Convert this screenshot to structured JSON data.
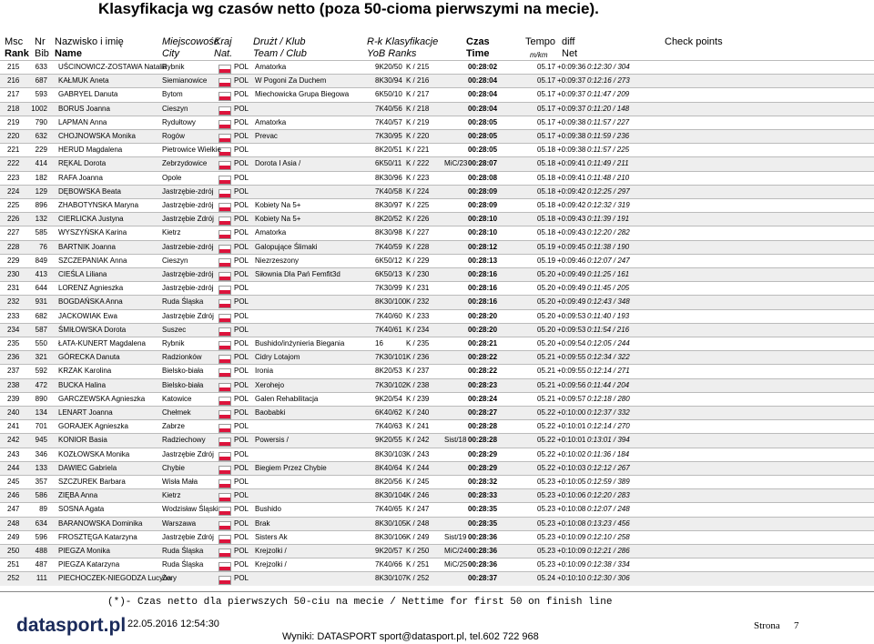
{
  "header": {
    "title": "Klasyfikacja wg czasów netto (poza 50-cioma pierwszymi na mecie).",
    "columns1": [
      "Msc",
      "Nr",
      "Nazwisko i imię",
      "Miejscowość",
      "Kraj",
      "Drużt / Klub",
      "R-k Klasyfikacje",
      "Czas",
      "Tempo",
      "diff",
      "Check points"
    ],
    "columns2": [
      "Rank",
      "Bib",
      "Name",
      "City",
      "Nat.",
      "Team / Club",
      "YoB Ranks",
      "Time",
      "m/km",
      "Net"
    ]
  },
  "table": {
    "rows": [
      [
        "215",
        "633",
        "UŚCINOWICZ-ZOSTAWA Natalia",
        "Rybnik",
        "POL",
        "Amatorka",
        "9K20/50",
        "K / 215",
        "",
        "00:28:02",
        "05.17",
        "+0:09:36",
        "0:12:30 / 304"
      ],
      [
        "216",
        "687",
        "KAŁMUK Aneta",
        "Siemianowice",
        "POL",
        "W Pogoni Za Duchem",
        "8K30/94",
        "K / 216",
        "",
        "00:28:04",
        "05.17",
        "+0:09:37",
        "0:12:16 / 273"
      ],
      [
        "217",
        "593",
        "GABRYEL Danuta",
        "Bytom",
        "POL",
        "Miechowicka Grupa Biegowa",
        "6K50/10",
        "K / 217",
        "",
        "00:28:04",
        "05.17",
        "+0:09:37",
        "0:11:47 / 209"
      ],
      [
        "218",
        "1002",
        "BORUS Joanna",
        "Cieszyn",
        "POL",
        "",
        "7K40/56",
        "K / 218",
        "",
        "00:28:04",
        "05.17",
        "+0:09:37",
        "0:11:20 / 148"
      ],
      [
        "219",
        "790",
        "LAPMAN Anna",
        "Rydułtowy",
        "POL",
        "Amatorka",
        "7K40/57",
        "K / 219",
        "",
        "00:28:05",
        "05.17",
        "+0:09:38",
        "0:11:57 / 227"
      ],
      [
        "220",
        "632",
        "CHOJNOWSKA Monika",
        "Rogów",
        "POL",
        "Prevac",
        "7K30/95",
        "K / 220",
        "",
        "00:28:05",
        "05.17",
        "+0:09:38",
        "0:11:59 / 236"
      ],
      [
        "221",
        "229",
        "HERUD Magdalena",
        "Pietrowice Wielkie",
        "POL",
        "",
        "8K20/51",
        "K / 221",
        "",
        "00:28:05",
        "05.18",
        "+0:09:38",
        "0:11:57 / 225"
      ],
      [
        "222",
        "414",
        "RĘKAL Dorota",
        "Zebrzydowice",
        "POL",
        "Dorota I Asia /",
        "6K50/11",
        "K / 222",
        "MiC/23",
        "00:28:07",
        "05.18",
        "+0:09:41",
        "0:11:49 / 211"
      ],
      [
        "223",
        "182",
        "RAFA Joanna",
        "Opole",
        "POL",
        "",
        "8K30/96",
        "K / 223",
        "",
        "00:28:08",
        "05.18",
        "+0:09:41",
        "0:11:48 / 210"
      ],
      [
        "224",
        "129",
        "DĘBOWSKA Beata",
        "Jastrzębie-zdrój",
        "POL",
        "",
        "7K40/58",
        "K / 224",
        "",
        "00:28:09",
        "05.18",
        "+0:09:42",
        "0:12:25 / 297"
      ],
      [
        "225",
        "896",
        "ZHABOTYNSKA Maryna",
        "Jastrzębie-zdrój",
        "POL",
        "Kobiety Na 5+",
        "8K30/97",
        "K / 225",
        "",
        "00:28:09",
        "05.18",
        "+0:09:42",
        "0:12:32 / 319"
      ],
      [
        "226",
        "132",
        "CIERLICKA Justyna",
        "Jastrzębie Zdrój",
        "POL",
        "Kobiety Na 5+",
        "8K20/52",
        "K / 226",
        "",
        "00:28:10",
        "05.18",
        "+0:09:43",
        "0:11:39 / 191"
      ],
      [
        "227",
        "585",
        "WYSZYŃSKA Karina",
        "Kietrz",
        "POL",
        "Amatorka",
        "8K30/98",
        "K / 227",
        "",
        "00:28:10",
        "05.18",
        "+0:09:43",
        "0:12:20 / 282"
      ],
      [
        "228",
        "76",
        "BARTNIK Joanna",
        "Jastrzebie-zdrój",
        "POL",
        "Galopujące Ślimaki",
        "7K40/59",
        "K / 228",
        "",
        "00:28:12",
        "05.19",
        "+0:09:45",
        "0:11:38 / 190"
      ],
      [
        "229",
        "849",
        "SZCZEPANIAK Anna",
        "Cieszyn",
        "POL",
        "Niezrzeszony",
        "6K50/12",
        "K / 229",
        "",
        "00:28:13",
        "05.19",
        "+0:09:46",
        "0:12:07 / 247"
      ],
      [
        "230",
        "413",
        "CIEŚLA Liliana",
        "Jastrzębie-zdrój",
        "POL",
        "Siłownia Dla Pań Femfit3d",
        "6K50/13",
        "K / 230",
        "",
        "00:28:16",
        "05.20",
        "+0:09:49",
        "0:11:25 / 161"
      ],
      [
        "231",
        "644",
        "LORENZ Agnieszka",
        "Jastrzębie-zdrój",
        "POL",
        "",
        "7K30/99",
        "K / 231",
        "",
        "00:28:16",
        "05.20",
        "+0:09:49",
        "0:11:45 / 205"
      ],
      [
        "232",
        "931",
        "BOGDAŃSKA Anna",
        "Ruda Śląska",
        "POL",
        "",
        "8K30/100",
        "K / 232",
        "",
        "00:28:16",
        "05.20",
        "+0:09:49",
        "0:12:43 / 348"
      ],
      [
        "233",
        "682",
        "JACKOWIAK Ewa",
        "Jastrzębie Zdrój",
        "POL",
        "",
        "7K40/60",
        "K / 233",
        "",
        "00:28:20",
        "05.20",
        "+0:09:53",
        "0:11:40 / 193"
      ],
      [
        "234",
        "587",
        "ŚMIŁOWSKA Dorota",
        "Suszec",
        "POL",
        "",
        "7K40/61",
        "K / 234",
        "",
        "00:28:20",
        "05.20",
        "+0:09:53",
        "0:11:54 / 216"
      ],
      [
        "235",
        "550",
        "ŁATA-KUNERT Magdalena",
        "Rybnik",
        "POL",
        "Bushido/inżynieria Biegania",
        "16",
        "K / 235",
        "",
        "00:28:21",
        "05.20",
        "+0:09:54",
        "0:12:05 / 244"
      ],
      [
        "236",
        "321",
        "GÓRECKA Danuta",
        "Radzionków",
        "POL",
        "Cidry Lotajom",
        "7K30/101",
        "K / 236",
        "",
        "00:28:22",
        "05.21",
        "+0:09:55",
        "0:12:34 / 322"
      ],
      [
        "237",
        "592",
        "KRZAK Karolina",
        "Bielsko-biała",
        "POL",
        "Ironia",
        "8K20/53",
        "K / 237",
        "",
        "00:28:22",
        "05.21",
        "+0:09:55",
        "0:12:14 / 271"
      ],
      [
        "238",
        "472",
        "BUCKA Halina",
        "Bielsko-biała",
        "POL",
        "Xerohejo",
        "7K30/102",
        "K / 238",
        "",
        "00:28:23",
        "05.21",
        "+0:09:56",
        "0:11:44 / 204"
      ],
      [
        "239",
        "890",
        "GARCZEWSKA Agnieszka",
        "Katowice",
        "POL",
        "Galen Rehabilitacja",
        "9K20/54",
        "K / 239",
        "",
        "00:28:24",
        "05.21",
        "+0:09:57",
        "0:12:18 / 280"
      ],
      [
        "240",
        "134",
        "LENART Joanna",
        "Chełmek",
        "POL",
        "Baobabki",
        "6K40/62",
        "K / 240",
        "",
        "00:28:27",
        "05.22",
        "+0:10:00",
        "0:12:37 / 332"
      ],
      [
        "241",
        "701",
        "GORAJEK Agnieszka",
        "Zabrze",
        "POL",
        "",
        "7K40/63",
        "K / 241",
        "",
        "00:28:28",
        "05.22",
        "+0:10:01",
        "0:12:14 / 270"
      ],
      [
        "242",
        "945",
        "KONIOR Basia",
        "Radziechowy",
        "POL",
        "Powersis /",
        "9K20/55",
        "K / 242",
        "Sist/18",
        "00:28:28",
        "05.22",
        "+0:10:01",
        "0:13:01 / 394"
      ],
      [
        "243",
        "346",
        "KOZŁOWSKA Monika",
        "Jastrzębie Zdrój",
        "POL",
        "",
        "8K30/103",
        "K / 243",
        "",
        "00:28:29",
        "05.22",
        "+0:10:02",
        "0:11:36 / 184"
      ],
      [
        "244",
        "133",
        "DAWIEC Gabriela",
        "Chybie",
        "POL",
        "Biegiem Przez Chybie",
        "8K40/64",
        "K / 244",
        "",
        "00:28:29",
        "05.22",
        "+0:10:03",
        "0:12:12 / 267"
      ],
      [
        "245",
        "357",
        "SZCZUREK Barbara",
        "Wisła Mała",
        "POL",
        "",
        "8K20/56",
        "K / 245",
        "",
        "00:28:32",
        "05.23",
        "+0:10:05",
        "0:12:59 / 389"
      ],
      [
        "246",
        "586",
        "ZIĘBA Anna",
        "Kietrz",
        "POL",
        "",
        "8K30/104",
        "K / 246",
        "",
        "00:28:33",
        "05.23",
        "+0:10:06",
        "0:12:20 / 283"
      ],
      [
        "247",
        "89",
        "SOSNA Agata",
        "Wodzisław Śląski",
        "POL",
        "Bushido",
        "7K40/65",
        "K / 247",
        "",
        "00:28:35",
        "05.23",
        "+0:10:08",
        "0:12:07 / 248"
      ],
      [
        "248",
        "634",
        "BARANOWSKA Dominika",
        "Warszawa",
        "POL",
        "Brak",
        "8K30/105",
        "K / 248",
        "",
        "00:28:35",
        "05.23",
        "+0:10:08",
        "0:13:23 / 456"
      ],
      [
        "249",
        "596",
        "FROSZTĘGA Katarzyna",
        "Jastrzębie Zdrój",
        "POL",
        "Sisters Ak",
        "8K30/106",
        "K / 249",
        "Sist/19",
        "00:28:36",
        "05.23",
        "+0:10:09",
        "0:12:10 / 258"
      ],
      [
        "250",
        "488",
        "PIEGZA Monika",
        "Ruda Śląska",
        "POL",
        "Krejzolki /",
        "9K20/57",
        "K / 250",
        "MiC/24",
        "00:28:36",
        "05.23",
        "+0:10:09",
        "0:12:21 / 286"
      ],
      [
        "251",
        "487",
        "PIEGZA Katarzyna",
        "Ruda Śląska",
        "POL",
        "Krejzolki /",
        "7K40/66",
        "K / 251",
        "MiC/25",
        "00:28:36",
        "05.23",
        "+0:10:09",
        "0:12:38 / 334"
      ],
      [
        "252",
        "111",
        "PIECHOCZEK-NIEGODZA Lucyna",
        "Żory",
        "POL",
        "",
        "8K30/107",
        "K / 252",
        "",
        "00:28:37",
        "05.24",
        "+0:10:10",
        "0:12:30 / 306"
      ]
    ]
  },
  "footer": {
    "note": "(*)- Czas netto dla pierwszych 50-ciu na mecie / Nettime for first 50 on finish line",
    "logo": "datasport.pl",
    "date": "22.05.2016 12:54:30",
    "contact": "Wyniki: DATASPORT sport@datasport.pl, tel.602 722 968",
    "page_label": "Strona",
    "page": "7"
  }
}
